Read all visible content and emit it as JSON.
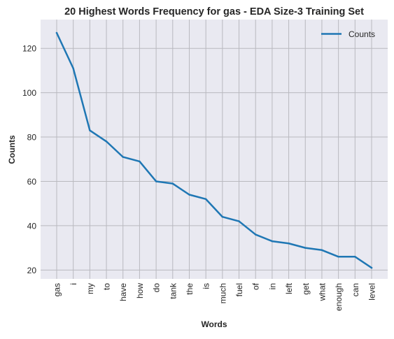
{
  "chart_data": {
    "type": "line",
    "title": "20 Highest Words Frequency for gas - EDA Size-3 Training Set",
    "xlabel": "Words",
    "ylabel": "Counts",
    "categories": [
      "gas",
      "i",
      "my",
      "to",
      "have",
      "how",
      "do",
      "tank",
      "the",
      "is",
      "much",
      "fuel",
      "of",
      "in",
      "left",
      "get",
      "what",
      "enough",
      "can",
      "level"
    ],
    "series": [
      {
        "name": "Counts",
        "values": [
          127,
          111,
          83,
          78,
          71,
          69,
          60,
          59,
          54,
          52,
          44,
          42,
          36,
          33,
          32,
          30,
          29,
          26,
          26,
          21
        ],
        "color": "#1f77b4"
      }
    ],
    "ylim": [
      16,
      133
    ],
    "yticks": [
      "20",
      "40",
      "60",
      "80",
      "100",
      "120"
    ],
    "grid": true,
    "legend_position": "top-right",
    "colors": {
      "plot_background": "#e9e9f1",
      "grid": "#b9b9bf",
      "text": "#262626"
    }
  }
}
